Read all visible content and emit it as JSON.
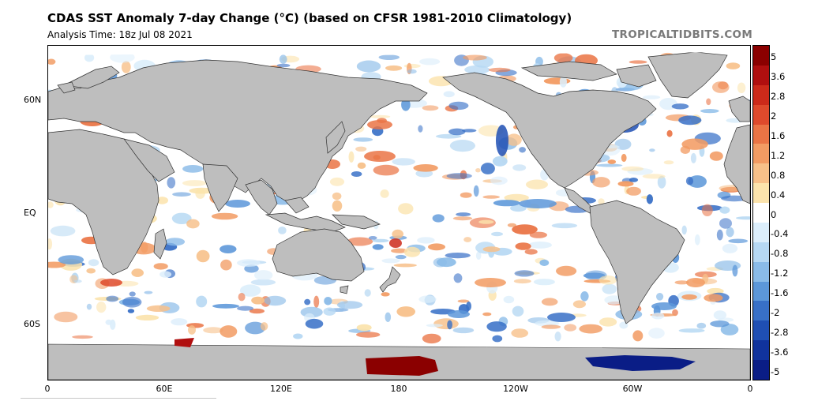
{
  "title": "CDAS SST Anomaly 7-day Change (°C) (based on CFSR 1981-2010 Climatology)",
  "subtitle": "Analysis Time: 18z Jul 08 2021",
  "site": "TROPICALTIDBITS.COM",
  "lat_labels": [
    "60N",
    "EQ",
    "60S"
  ],
  "lon_labels": [
    "0",
    "60E",
    "120E",
    "180",
    "120W",
    "60W",
    "0"
  ],
  "colorbar": {
    "labels": [
      "5",
      "3.6",
      "2.8",
      "2",
      "1.6",
      "1.2",
      "0.8",
      "0.4",
      "0",
      "-0.4",
      "-0.8",
      "-1.2",
      "-1.6",
      "-2",
      "-2.8",
      "-3.6",
      "-5"
    ],
    "colors": [
      "#8b0000",
      "#b00f0f",
      "#cc2a1a",
      "#de4a2c",
      "#ea7445",
      "#f29b63",
      "#f7c089",
      "#fbe3ac",
      "#ffffff",
      "#dceefb",
      "#b6d8f3",
      "#8abbe8",
      "#5c97d9",
      "#3870c7",
      "#1f4fb4",
      "#10339d",
      "#0a1d86"
    ]
  },
  "map": {
    "land_color": "#bebebe",
    "ice_color": "#ffffff",
    "ocean_color": "#ffffff"
  }
}
